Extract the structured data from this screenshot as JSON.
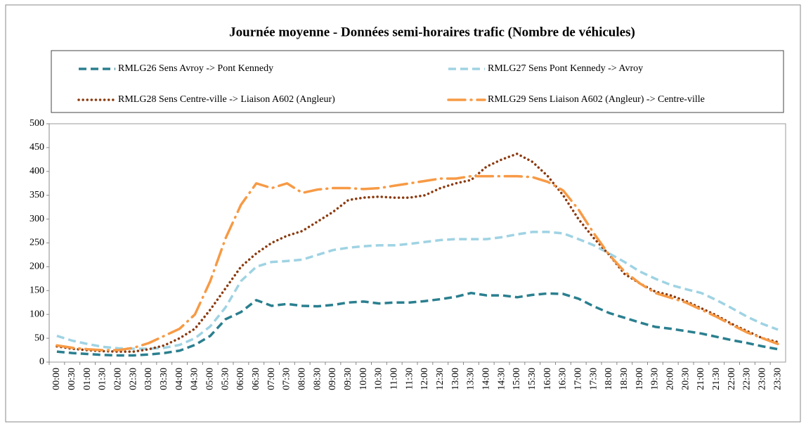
{
  "chart_data": {
    "type": "line",
    "title": "Journée moyenne - Données semi-horaires trafic (Nombre de véhicules)",
    "categories": [
      "00:00",
      "00:30",
      "01:00",
      "01:30",
      "02:00",
      "02:30",
      "03:00",
      "03:30",
      "04:00",
      "04:30",
      "05:00",
      "05:30",
      "06:00",
      "06:30",
      "07:00",
      "07:30",
      "08:00",
      "08:30",
      "09:00",
      "09:30",
      "10:00",
      "10:30",
      "11:00",
      "11:30",
      "12:00",
      "12:30",
      "13:00",
      "13:30",
      "14:00",
      "14:30",
      "15:00",
      "15:30",
      "16:00",
      "16:30",
      "17:00",
      "17:30",
      "18:00",
      "18:30",
      "19:00",
      "19:30",
      "20:00",
      "20:30",
      "21:00",
      "21:30",
      "22:00",
      "22:30",
      "23:00",
      "23:30"
    ],
    "series": [
      {
        "name": "RMLG26 Sens Avroy -> Pont Kennedy",
        "color": "#2a7f8f",
        "dash": "dash",
        "values": [
          22,
          19,
          17,
          15,
          14,
          14,
          16,
          19,
          24,
          36,
          55,
          90,
          105,
          130,
          118,
          122,
          118,
          117,
          120,
          125,
          127,
          123,
          125,
          125,
          128,
          132,
          137,
          145,
          140,
          140,
          136,
          141,
          144,
          143,
          133,
          117,
          103,
          93,
          83,
          74,
          70,
          65,
          60,
          53,
          46,
          40,
          33,
          27
        ]
      },
      {
        "name": "RMLG27 Sens Pont Kennedy -> Avroy",
        "color": "#9fd3e3",
        "dash": "dash",
        "values": [
          55,
          45,
          38,
          32,
          29,
          28,
          28,
          30,
          36,
          50,
          75,
          115,
          170,
          200,
          210,
          212,
          215,
          225,
          235,
          240,
          243,
          245,
          245,
          248,
          252,
          256,
          258,
          258,
          258,
          262,
          268,
          273,
          273,
          270,
          258,
          245,
          228,
          210,
          190,
          175,
          162,
          153,
          145,
          130,
          113,
          95,
          80,
          68
        ]
      },
      {
        "name": "RMLG28 Sens Centre-ville -> Liaison A602 (Angleur)",
        "color": "#8b3a0e",
        "dash": "dot",
        "values": [
          33,
          28,
          25,
          23,
          22,
          22,
          27,
          35,
          50,
          70,
          110,
          155,
          200,
          228,
          250,
          265,
          275,
          295,
          315,
          340,
          345,
          347,
          345,
          345,
          350,
          365,
          375,
          382,
          410,
          425,
          437,
          420,
          390,
          350,
          300,
          260,
          225,
          185,
          165,
          148,
          140,
          128,
          113,
          98,
          80,
          65,
          50,
          42
        ]
      },
      {
        "name": "RMLG29 Sens Liaison A602 (Angleur) -> Centre-ville",
        "color": "#f79a45",
        "dash": "dashdot",
        "values": [
          35,
          30,
          27,
          25,
          25,
          30,
          40,
          55,
          70,
          100,
          170,
          260,
          330,
          375,
          365,
          375,
          355,
          362,
          365,
          365,
          363,
          365,
          370,
          375,
          380,
          385,
          385,
          390,
          390,
          390,
          390,
          388,
          378,
          360,
          320,
          270,
          225,
          190,
          165,
          145,
          135,
          125,
          110,
          95,
          78,
          62,
          50,
          38
        ]
      }
    ],
    "ylim": [
      0,
      500
    ],
    "yticks": [
      0,
      50,
      100,
      150,
      200,
      250,
      300,
      350,
      400,
      450,
      500
    ],
    "legend": "top",
    "grid": false
  }
}
